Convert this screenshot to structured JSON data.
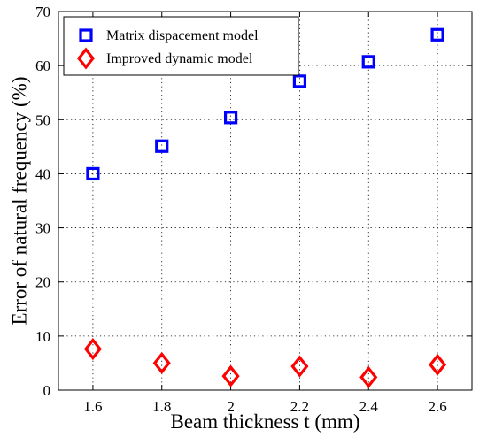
{
  "chart_data": {
    "type": "scatter",
    "title": "",
    "xlabel": "Beam thickness t (mm)",
    "ylabel": "Error of natural frequency (%)",
    "xlim": [
      1.5,
      2.7
    ],
    "ylim": [
      0,
      70
    ],
    "x_ticks": [
      "1.6",
      "1.8",
      "2",
      "2.2",
      "2.4",
      "2.6"
    ],
    "y_ticks": [
      "0",
      "10",
      "20",
      "30",
      "40",
      "50",
      "60",
      "70"
    ],
    "grid": true,
    "legend_position": "top-left",
    "series": [
      {
        "name": "Matrix dispacement model",
        "marker": "square",
        "color": "#0000ff",
        "x": [
          1.6,
          1.8,
          2.0,
          2.2,
          2.4,
          2.6
        ],
        "y": [
          40.0,
          45.1,
          50.4,
          57.1,
          60.7,
          65.7
        ]
      },
      {
        "name": "Improved dynamic model",
        "marker": "diamond",
        "color": "#ff0000",
        "x": [
          1.6,
          1.8,
          2.0,
          2.2,
          2.4,
          2.6
        ],
        "y": [
          7.6,
          5.0,
          2.6,
          4.4,
          2.4,
          4.7
        ]
      }
    ]
  }
}
